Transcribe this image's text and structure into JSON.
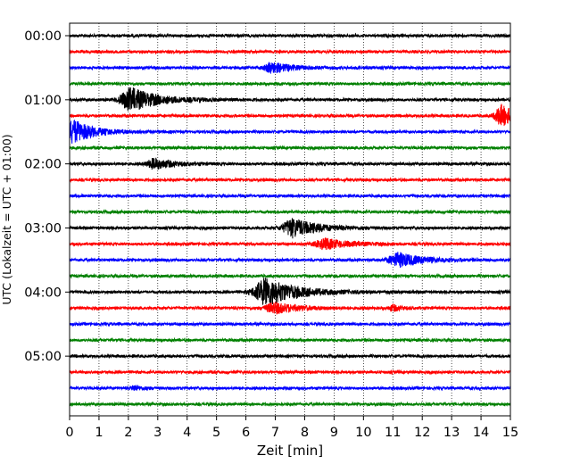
{
  "chart_data": {
    "type": "line",
    "title": "",
    "xlabel": "Zeit  [min]",
    "ylabel": "UTC (Lokalzeit = UTC + 01:00)",
    "xlim": [
      0,
      15
    ],
    "x_ticks": [
      "0",
      "1",
      "2",
      "3",
      "4",
      "5",
      "6",
      "7",
      "8",
      "9",
      "10",
      "11",
      "12",
      "13",
      "14",
      "15"
    ],
    "y_tick_labels": [
      "00:00",
      "01:00",
      "02:00",
      "03:00",
      "04:00",
      "05:00"
    ],
    "grid": "vertical dotted",
    "line_interval_min": 15,
    "line_start_utc": "00:00",
    "line_end_utc": "05:45",
    "trace_colors": [
      "#000000",
      "#ff0000",
      "#0000ff",
      "#008000"
    ],
    "traces": [
      {
        "start": "00:00",
        "color": "#000000",
        "events": []
      },
      {
        "start": "00:15",
        "color": "#ff0000",
        "events": []
      },
      {
        "start": "00:30",
        "color": "#0000ff",
        "events": [
          {
            "t": 6.9,
            "amp": 0.45,
            "dur": 1.4
          }
        ]
      },
      {
        "start": "00:45",
        "color": "#008000",
        "events": []
      },
      {
        "start": "01:00",
        "color": "#000000",
        "events": [
          {
            "t": 2.1,
            "amp": 1.0,
            "dur": 2.0
          }
        ]
      },
      {
        "start": "01:15",
        "color": "#ff0000",
        "events": [
          {
            "t": 14.7,
            "amp": 0.9,
            "dur": 1.2
          }
        ]
      },
      {
        "start": "01:30",
        "color": "#0000ff",
        "events": [
          {
            "t": 0.15,
            "amp": 1.0,
            "dur": 1.4
          }
        ]
      },
      {
        "start": "01:45",
        "color": "#008000",
        "events": []
      },
      {
        "start": "02:00",
        "color": "#000000",
        "events": [
          {
            "t": 2.9,
            "amp": 0.45,
            "dur": 1.4
          }
        ]
      },
      {
        "start": "02:15",
        "color": "#ff0000",
        "events": []
      },
      {
        "start": "02:30",
        "color": "#0000ff",
        "events": []
      },
      {
        "start": "02:45",
        "color": "#008000",
        "events": []
      },
      {
        "start": "03:00",
        "color": "#000000",
        "events": [
          {
            "t": 7.6,
            "amp": 0.8,
            "dur": 1.8
          }
        ]
      },
      {
        "start": "03:15",
        "color": "#ff0000",
        "events": [
          {
            "t": 8.7,
            "amp": 0.45,
            "dur": 1.8
          }
        ]
      },
      {
        "start": "03:30",
        "color": "#0000ff",
        "events": [
          {
            "t": 11.2,
            "amp": 0.6,
            "dur": 1.8
          }
        ]
      },
      {
        "start": "03:45",
        "color": "#008000",
        "events": []
      },
      {
        "start": "04:00",
        "color": "#000000",
        "events": [
          {
            "t": 6.7,
            "amp": 1.2,
            "dur": 2.2
          }
        ]
      },
      {
        "start": "04:15",
        "color": "#ff0000",
        "events": [
          {
            "t": 7.0,
            "amp": 0.45,
            "dur": 1.8
          },
          {
            "t": 11.0,
            "amp": 0.25,
            "dur": 0.7
          }
        ]
      },
      {
        "start": "04:30",
        "color": "#0000ff",
        "events": []
      },
      {
        "start": "04:45",
        "color": "#008000",
        "events": []
      },
      {
        "start": "05:00",
        "color": "#000000",
        "events": []
      },
      {
        "start": "05:15",
        "color": "#ff0000",
        "events": []
      },
      {
        "start": "05:30",
        "color": "#0000ff",
        "events": [
          {
            "t": 2.2,
            "amp": 0.2,
            "dur": 0.6
          }
        ]
      },
      {
        "start": "05:45",
        "color": "#008000",
        "events": []
      }
    ]
  }
}
